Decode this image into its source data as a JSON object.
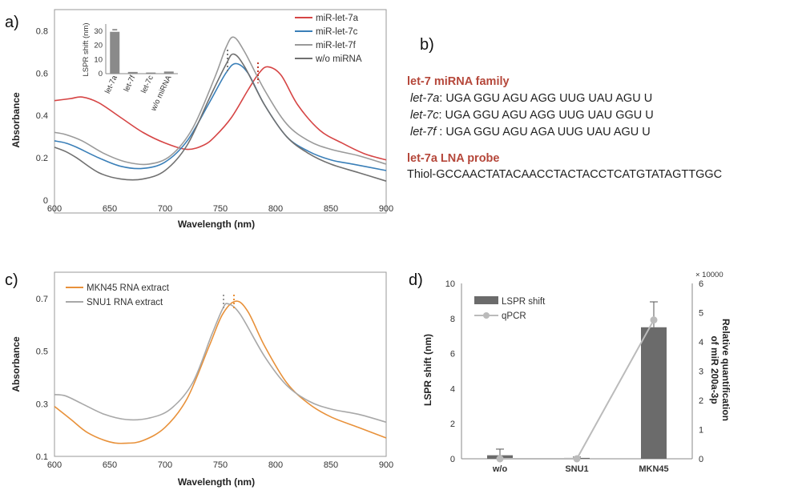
{
  "chart_data": [
    {
      "panel": "a)",
      "type": "line",
      "xlabel": "Wavelength (nm)",
      "ylabel": "Absorbance",
      "xlim": [
        600,
        900
      ],
      "ylim": [
        0,
        0.9
      ],
      "xticks": [
        "600",
        "650",
        "700",
        "750",
        "800",
        "850",
        "900"
      ],
      "yticks": [
        "0",
        "0.2",
        "0.4",
        "0.6",
        "0.8"
      ],
      "legend_position": "top-right",
      "series": [
        {
          "name": "miR-let-7a",
          "color": "#d64545",
          "x": [
            600,
            615,
            625,
            640,
            660,
            680,
            700,
            720,
            735,
            745,
            760,
            775,
            785,
            793,
            805,
            820,
            840,
            860,
            880,
            900
          ],
          "y": [
            0.47,
            0.48,
            0.487,
            0.46,
            0.39,
            0.32,
            0.27,
            0.24,
            0.26,
            0.3,
            0.39,
            0.52,
            0.6,
            0.63,
            0.59,
            0.45,
            0.33,
            0.27,
            0.22,
            0.19
          ]
        },
        {
          "name": "miR-let-7c",
          "color": "#3a7fb8",
          "x": [
            600,
            610,
            620,
            640,
            660,
            680,
            700,
            720,
            740,
            755,
            764,
            775,
            790,
            810,
            830,
            850,
            870,
            900
          ],
          "y": [
            0.28,
            0.27,
            0.25,
            0.2,
            0.16,
            0.15,
            0.18,
            0.28,
            0.46,
            0.6,
            0.645,
            0.6,
            0.45,
            0.3,
            0.23,
            0.19,
            0.17,
            0.14
          ]
        },
        {
          "name": "miR-let-7f",
          "color": "#9a9a9a",
          "x": [
            600,
            610,
            625,
            645,
            665,
            685,
            705,
            725,
            745,
            755,
            762,
            772,
            790,
            810,
            830,
            850,
            875,
            900
          ],
          "y": [
            0.32,
            0.31,
            0.28,
            0.22,
            0.18,
            0.17,
            0.21,
            0.34,
            0.58,
            0.72,
            0.77,
            0.7,
            0.52,
            0.36,
            0.28,
            0.24,
            0.21,
            0.17
          ]
        },
        {
          "name": "w/o miRNA",
          "color": "#707070",
          "x": [
            600,
            610,
            620,
            640,
            660,
            680,
            700,
            720,
            740,
            755,
            762,
            772,
            790,
            810,
            830,
            850,
            875,
            900
          ],
          "y": [
            0.25,
            0.23,
            0.2,
            0.13,
            0.1,
            0.1,
            0.14,
            0.26,
            0.48,
            0.64,
            0.69,
            0.63,
            0.45,
            0.3,
            0.22,
            0.17,
            0.13,
            0.09
          ]
        }
      ],
      "inset": {
        "type": "bar",
        "ylabel": "LSPR shift (nm)",
        "ylim": [
          0,
          35
        ],
        "yticks": [
          "0",
          "10",
          "20",
          "30"
        ],
        "categories": [
          "let-7a",
          "let-7f",
          "let-7c",
          "w/o miRNA"
        ],
        "values": [
          29.5,
          1.2,
          0.8,
          1.5
        ]
      }
    },
    {
      "panel": "c)",
      "type": "line",
      "xlabel": "Wavelength (nm)",
      "ylabel": "Absorbance",
      "xlim": [
        600,
        900
      ],
      "ylim": [
        0.1,
        0.8
      ],
      "xticks": [
        "600",
        "650",
        "700",
        "750",
        "800",
        "850",
        "900"
      ],
      "yticks": [
        "0.1",
        "0.3",
        "0.5",
        "0.7"
      ],
      "legend_position": "top-left",
      "series": [
        {
          "name": "MKN45 RNA extract",
          "color": "#e8913a",
          "x": [
            600,
            615,
            630,
            650,
            665,
            680,
            700,
            720,
            740,
            752,
            764,
            775,
            790,
            810,
            830,
            850,
            875,
            900
          ],
          "y": [
            0.29,
            0.24,
            0.19,
            0.155,
            0.15,
            0.16,
            0.21,
            0.32,
            0.52,
            0.64,
            0.69,
            0.65,
            0.52,
            0.38,
            0.3,
            0.25,
            0.21,
            0.17
          ]
        },
        {
          "name": "SNU1 RNA extract",
          "color": "#a8a8a8",
          "x": [
            600,
            610,
            625,
            645,
            665,
            685,
            705,
            725,
            742,
            752,
            757,
            768,
            790,
            810,
            830,
            850,
            875,
            900
          ],
          "y": [
            0.335,
            0.33,
            0.3,
            0.26,
            0.24,
            0.245,
            0.28,
            0.38,
            0.56,
            0.66,
            0.68,
            0.64,
            0.48,
            0.37,
            0.31,
            0.28,
            0.26,
            0.23
          ]
        }
      ]
    },
    {
      "panel": "d)",
      "type": "bar",
      "categories": [
        "w/o",
        "SNU1",
        "MKN45"
      ],
      "legend_position": "top-left",
      "series": [
        {
          "name": "LSPR shift",
          "type": "bar",
          "axis": "left",
          "color": "#6b6b6b",
          "values": [
            0.2,
            0.05,
            7.5
          ],
          "errors": [
            0.35,
            0.05,
            1.45
          ]
        },
        {
          "name": "qPCR",
          "type": "line",
          "axis": "right",
          "color": "#bbbbbb",
          "values": [
            0.0,
            0.0,
            4.75
          ]
        }
      ],
      "ylabel": "LSPR shift (nm)",
      "ylim": [
        0,
        10
      ],
      "yticks": [
        "0",
        "2",
        "4",
        "6",
        "8",
        "10"
      ],
      "y2label": "Relative quantification of miR 200a-3p",
      "y2lim": [
        0,
        6
      ],
      "y2ticks": [
        "0",
        "1",
        "2",
        "3",
        "4",
        "5",
        "6"
      ],
      "y2multiplier": "× 10000"
    }
  ],
  "panel_b": {
    "label": "b)",
    "family_title": "let-7 miRNA family",
    "sequences": [
      {
        "name": "let-7a",
        "seq": ": UGA GGU AGU AGG UUG UAU AGU U"
      },
      {
        "name": "let-7c",
        "seq": ": UGA GGU AGU AGG UUG UAU GGU U"
      },
      {
        "name": "let-7f",
        "seq": " : UGA GGU AGU AGA UUG UAU AGU U"
      }
    ],
    "probe_title": "let-7a LNA probe",
    "probe_seq": "Thiol-GCCAACTATACAACCTACTACCTCATGTATAGTTGGC"
  }
}
